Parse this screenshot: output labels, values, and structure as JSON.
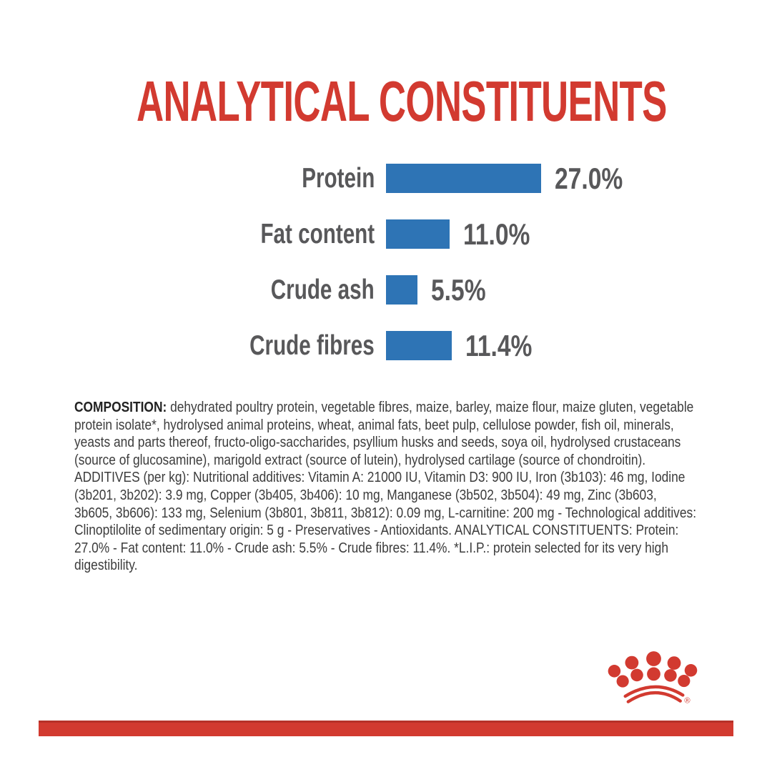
{
  "title": "ANALYTICAL CONSTITUENTS",
  "chart_data": {
    "type": "bar",
    "orientation": "horizontal",
    "title": "ANALYTICAL CONSTITUENTS",
    "categories": [
      "Protein",
      "Fat content",
      "Crude ash",
      "Crude fibres"
    ],
    "values": [
      27.0,
      11.0,
      5.5,
      11.4
    ],
    "value_labels": [
      "27.0%",
      "11.0%",
      "5.5%",
      "11.4%"
    ],
    "unit": "%",
    "xlim": [
      0,
      27
    ],
    "grid": false,
    "legend": false,
    "bar_color": "#2E74B5",
    "label_color": "#58585A"
  },
  "composition": {
    "label": "COMPOSITION:",
    "text": " dehydrated poultry protein, vegetable fibres, maize, barley, maize flour, maize gluten, vegetable protein isolate*, hydrolysed animal proteins, wheat, animal fats, beet pulp, cellulose powder, fish oil, minerals, yeasts and parts thereof, fructo-oligo-saccharides, psyllium husks and seeds, soya oil, hydrolysed crustaceans (source of glucosamine), marigold extract (source of lutein), hydrolysed cartilage (source of chondroitin). ADDITIVES (per kg): Nutritional additives: Vitamin A: 21000 IU, Vitamin D3: 900 IU, Iron (3b103): 46 mg, Iodine (3b201, 3b202): 3.9 mg, Copper (3b405, 3b406): 10 mg, Manganese (3b502, 3b504): 49 mg, Zinc (3b603, 3b605, 3b606): 133 mg, Selenium (3b801, 3b811, 3b812): 0.09 mg, L-carnitine: 200 mg - Technological additives: Clinoptilolite of sedimentary origin: 5 g - Preservatives - Antioxidants. ANALYTICAL CONSTITUENTS: Protein: 27.0% - Fat content: 11.0% - Crude ash: 5.5% - Crude fibres: 11.4%. *L.I.P.: protein selected for its very high digestibility."
  },
  "logo": {
    "name": "royal-canin-crown",
    "registered_mark": "®"
  },
  "colors": {
    "red": "#D23A30",
    "blue": "#2E74B5",
    "label_gray": "#58585A",
    "text_gray": "#3C3C3C"
  }
}
